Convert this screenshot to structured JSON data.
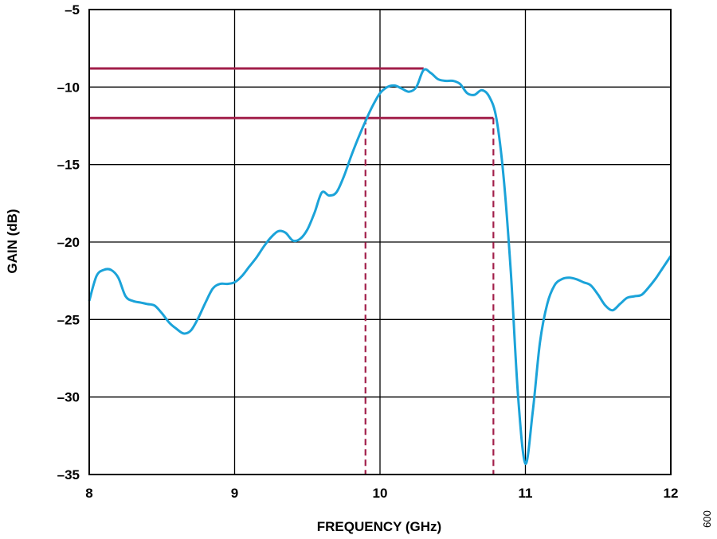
{
  "figure_id": "009",
  "chart_data": {
    "type": "line",
    "title": "",
    "xlabel": "FREQUENCY (GHz)",
    "ylabel": "GAIN (dB)",
    "xlim": [
      8,
      12
    ],
    "ylim": [
      -35,
      -5
    ],
    "xticks": [
      8,
      9,
      10,
      11,
      12
    ],
    "yticks": [
      -5,
      -10,
      -15,
      -20,
      -25,
      -30,
      -35
    ],
    "xtick_labels": [
      "8",
      "9",
      "10",
      "11",
      "12"
    ],
    "ytick_labels": [
      "–5",
      "–10",
      "–15",
      "–20",
      "–25",
      "–30",
      "–35"
    ],
    "grid": true,
    "series": [
      {
        "color": "#1ba3d9",
        "x": [
          8.0,
          8.05,
          8.1,
          8.15,
          8.2,
          8.25,
          8.3,
          8.35,
          8.4,
          8.45,
          8.5,
          8.55,
          8.6,
          8.65,
          8.7,
          8.75,
          8.8,
          8.85,
          8.9,
          8.95,
          9.0,
          9.05,
          9.1,
          9.15,
          9.2,
          9.25,
          9.3,
          9.35,
          9.4,
          9.45,
          9.5,
          9.55,
          9.6,
          9.65,
          9.7,
          9.75,
          9.8,
          9.85,
          9.9,
          9.95,
          10.0,
          10.05,
          10.1,
          10.15,
          10.2,
          10.25,
          10.3,
          10.35,
          10.4,
          10.45,
          10.5,
          10.55,
          10.6,
          10.65,
          10.7,
          10.75,
          10.8,
          10.85,
          10.9,
          10.95,
          11.0,
          11.05,
          11.1,
          11.15,
          11.2,
          11.25,
          11.3,
          11.35,
          11.4,
          11.45,
          11.5,
          11.55,
          11.6,
          11.65,
          11.7,
          11.75,
          11.8,
          11.85,
          11.9,
          11.95,
          12.0
        ],
        "y": [
          -23.8,
          -22.2,
          -21.8,
          -21.8,
          -22.3,
          -23.5,
          -23.8,
          -23.9,
          -24.0,
          -24.1,
          -24.6,
          -25.2,
          -25.6,
          -25.9,
          -25.7,
          -24.9,
          -23.9,
          -23.0,
          -22.7,
          -22.7,
          -22.6,
          -22.2,
          -21.6,
          -21.0,
          -20.3,
          -19.7,
          -19.3,
          -19.4,
          -19.9,
          -19.8,
          -19.2,
          -18.1,
          -16.8,
          -17.0,
          -16.8,
          -15.8,
          -14.5,
          -13.3,
          -12.2,
          -11.2,
          -10.4,
          -10.0,
          -9.9,
          -10.1,
          -10.3,
          -10.0,
          -8.9,
          -9.1,
          -9.5,
          -9.6,
          -9.6,
          -9.8,
          -10.4,
          -10.5,
          -10.2,
          -10.6,
          -12.0,
          -15.8,
          -22.0,
          -30.0,
          -34.3,
          -31.0,
          -26.5,
          -24.0,
          -22.8,
          -22.4,
          -22.3,
          -22.4,
          -22.6,
          -22.8,
          -23.4,
          -24.1,
          -24.4,
          -24.0,
          -23.6,
          -23.5,
          -23.4,
          -22.9,
          -22.3,
          -21.6,
          -20.9
        ]
      }
    ],
    "markers": {
      "color": "#a21f4a",
      "horizontal": [
        {
          "y": -8.8,
          "x_from": 8,
          "x_to": 10.3
        },
        {
          "y": -12.0,
          "x_from": 8,
          "x_to": 10.78
        }
      ],
      "vertical_dashed": [
        {
          "x": 9.9,
          "y_from": -12.0,
          "y_to": -35
        },
        {
          "x": 10.78,
          "y_from": -12.0,
          "y_to": -35
        }
      ]
    }
  }
}
